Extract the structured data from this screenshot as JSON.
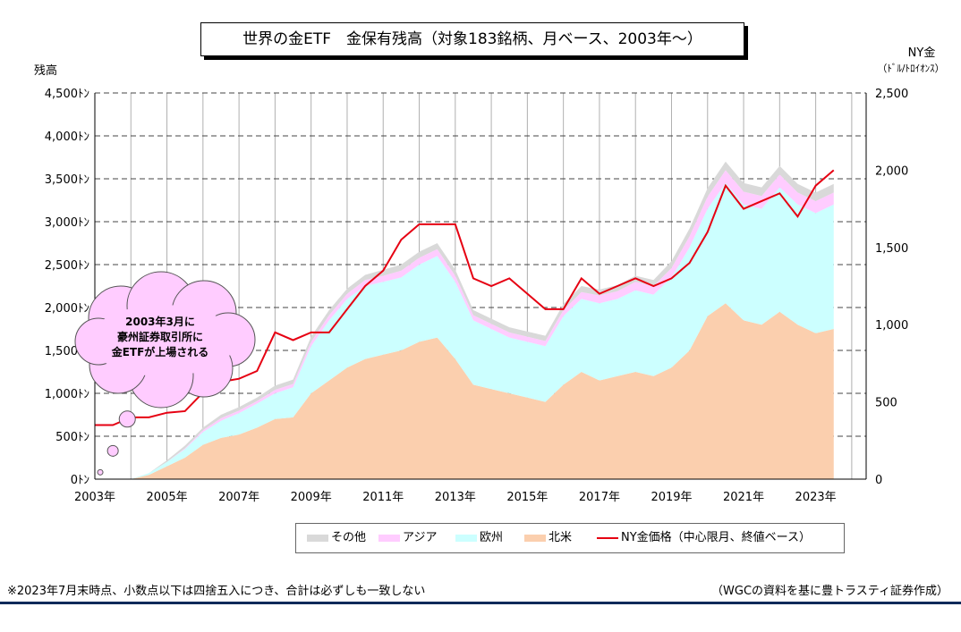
{
  "header": {
    "title": "世界の金ETF　金保有残高（対象183銘柄、月ベース、2003年～）",
    "left_axis_label": "残高",
    "right_axis_label": "NY金",
    "right_axis_unit": "（ﾄﾞﾙ/ﾄﾛｲｵﾝｽ）"
  },
  "callout": {
    "lines": [
      "2003年3月に",
      "豪州証券取引所に",
      "金ETFが上場される"
    ]
  },
  "footer": {
    "note": "※2023年7月末時点、小数点以下は四捨五入につき、合計は必ずしも一致しない",
    "source": "（WGCの資料を基に豊トラスティ証券作成）"
  },
  "chart_data": {
    "type": "area",
    "title": "世界の金ETF　金保有残高（対象183銘柄、月ベース、2003年～）",
    "ylabel": "残高",
    "y2label": "NY金（ﾄﾞﾙ/ﾄﾛｲｵﾝｽ）",
    "ylim": [
      0,
      4500
    ],
    "y2lim": [
      0,
      2500
    ],
    "grid": true,
    "legend_position": "bottom",
    "y_ticks": [
      "0ﾄﾝ",
      "500ﾄﾝ",
      "1,000ﾄﾝ",
      "1,500ﾄﾝ",
      "2,000ﾄﾝ",
      "2,500ﾄﾝ",
      "3,000ﾄﾝ",
      "3,500ﾄﾝ",
      "4,000ﾄﾝ",
      "4,500ﾄﾝ"
    ],
    "y2_ticks": [
      "0",
      "500",
      "1,000",
      "1,500",
      "2,000",
      "2,500"
    ],
    "x_ticks": [
      "2003年",
      "2005年",
      "2007年",
      "2009年",
      "2011年",
      "2013年",
      "2015年",
      "2017年",
      "2019年",
      "2021年",
      "2023年"
    ],
    "legend": [
      "その他",
      "アジア",
      "欧州",
      "北米",
      "NY金価格（中心限月、終値ベース）"
    ],
    "colors": {
      "other": "#d9d9d9",
      "asia": "#ffccff",
      "europe": "#ccffff",
      "north_america": "#fbcfae",
      "gold_price": "#e60012",
      "callout_fill": "#ffccff"
    },
    "x": [
      2003.0,
      2003.5,
      2004.0,
      2004.5,
      2005.0,
      2005.5,
      2006.0,
      2006.5,
      2007.0,
      2007.5,
      2008.0,
      2008.5,
      2009.0,
      2009.5,
      2010.0,
      2010.5,
      2011.0,
      2011.5,
      2012.0,
      2012.5,
      2013.0,
      2013.5,
      2014.0,
      2014.5,
      2015.0,
      2015.5,
      2016.0,
      2016.5,
      2017.0,
      2017.5,
      2018.0,
      2018.5,
      2019.0,
      2019.5,
      2020.0,
      2020.5,
      2021.0,
      2021.5,
      2022.0,
      2022.5,
      2023.0,
      2023.5
    ],
    "series": [
      {
        "name": "北米",
        "unit": "ﾄﾝ",
        "values": [
          0,
          0,
          0,
          50,
          150,
          250,
          400,
          480,
          520,
          600,
          700,
          720,
          1000,
          1150,
          1300,
          1400,
          1450,
          1500,
          1600,
          1650,
          1400,
          1100,
          1050,
          1000,
          950,
          900,
          1100,
          1250,
          1150,
          1200,
          1250,
          1200,
          1300,
          1500,
          1900,
          2050,
          1850,
          1800,
          1950,
          1800,
          1700,
          1750
        ]
      },
      {
        "name": "欧州",
        "unit": "ﾄﾝ",
        "values": [
          0,
          0,
          0,
          20,
          50,
          100,
          150,
          200,
          250,
          280,
          300,
          350,
          550,
          700,
          800,
          850,
          850,
          850,
          900,
          950,
          900,
          750,
          700,
          650,
          650,
          650,
          800,
          850,
          900,
          900,
          950,
          950,
          1050,
          1200,
          1250,
          1400,
          1350,
          1350,
          1450,
          1400,
          1400,
          1450
        ]
      },
      {
        "name": "アジア",
        "unit": "ﾄﾝ",
        "values": [
          0,
          0,
          0,
          0,
          0,
          10,
          20,
          30,
          30,
          30,
          40,
          40,
          50,
          60,
          60,
          70,
          70,
          80,
          80,
          80,
          70,
          60,
          60,
          60,
          60,
          60,
          70,
          80,
          90,
          90,
          100,
          100,
          110,
          130,
          140,
          150,
          150,
          150,
          150,
          140,
          140,
          140
        ]
      },
      {
        "name": "その他",
        "unit": "ﾄﾝ",
        "values": [
          0,
          0,
          0,
          0,
          20,
          30,
          30,
          40,
          40,
          40,
          50,
          50,
          60,
          60,
          60,
          60,
          70,
          70,
          70,
          70,
          70,
          60,
          60,
          60,
          60,
          60,
          70,
          70,
          70,
          70,
          70,
          70,
          80,
          90,
          100,
          100,
          100,
          100,
          100,
          100,
          100,
          100
        ]
      },
      {
        "name": "NY金価格（中心限月、終値ベース）",
        "unit": "ﾄﾞﾙ/ﾄﾛｲｵﾝｽ",
        "axis": "right",
        "values": [
          350,
          350,
          400,
          400,
          430,
          440,
          560,
          630,
          650,
          700,
          950,
          900,
          950,
          950,
          1100,
          1250,
          1350,
          1550,
          1650,
          1650,
          1650,
          1300,
          1250,
          1300,
          1200,
          1100,
          1100,
          1300,
          1200,
          1250,
          1300,
          1250,
          1300,
          1400,
          1600,
          1900,
          1750,
          1800,
          1850,
          1700,
          1900,
          2000
        ]
      }
    ]
  },
  "callout_bubbles": [
    {
      "x": 2003.15,
      "y": 80,
      "r": 3
    },
    {
      "x": 2003.5,
      "y": 330,
      "r": 6
    },
    {
      "x": 2003.9,
      "y": 700,
      "r": 9
    }
  ]
}
